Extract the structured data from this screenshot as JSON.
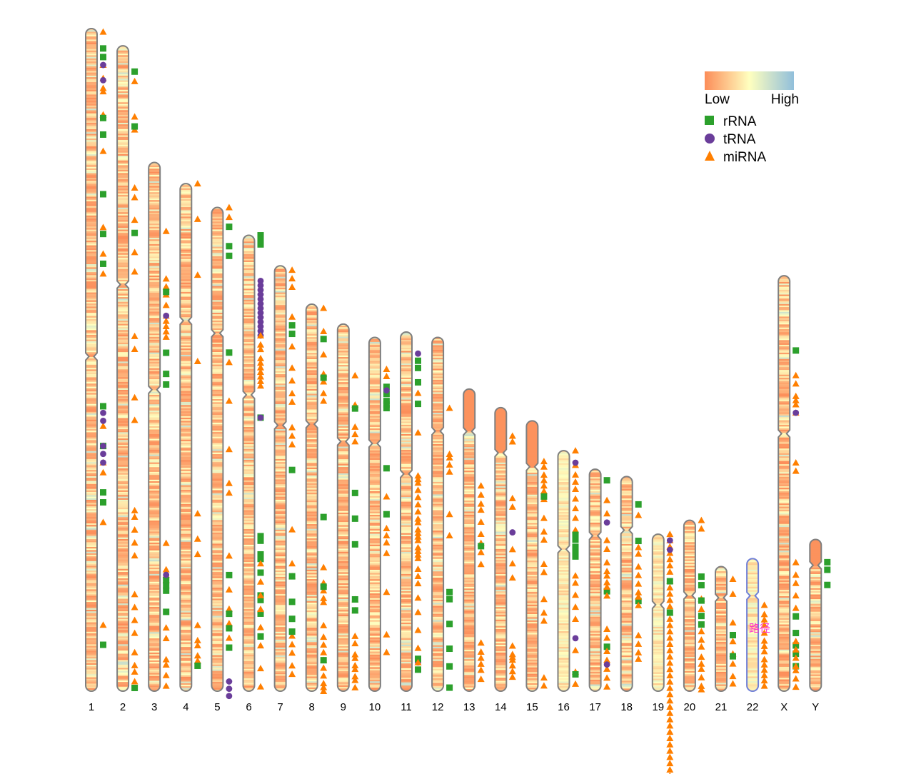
{
  "chart_data": {
    "type": "chromosome-ideogram",
    "title": "",
    "xlabel": "",
    "ylabel": "",
    "chromosomes": [
      {
        "name": "1",
        "length": 1.0,
        "centromere": 0.495
      },
      {
        "name": "2",
        "length": 0.974,
        "centromere": 0.37
      },
      {
        "name": "3",
        "length": 0.798,
        "centromere": 0.43
      },
      {
        "name": "4",
        "length": 0.766,
        "centromere": 0.27
      },
      {
        "name": "5",
        "length": 0.73,
        "centromere": 0.26
      },
      {
        "name": "6",
        "length": 0.688,
        "centromere": 0.35
      },
      {
        "name": "7",
        "length": 0.642,
        "centromere": 0.375
      },
      {
        "name": "8",
        "length": 0.584,
        "centromere": 0.31
      },
      {
        "name": "9",
        "length": 0.554,
        "centromere": 0.32
      },
      {
        "name": "10",
        "length": 0.534,
        "centromere": 0.3
      },
      {
        "name": "11",
        "length": 0.542,
        "centromere": 0.395
      },
      {
        "name": "12",
        "length": 0.534,
        "centromere": 0.265
      },
      {
        "name": "13",
        "length": 0.456,
        "centromere": 0.14
      },
      {
        "name": "14",
        "length": 0.428,
        "centromere": 0.16
      },
      {
        "name": "15",
        "length": 0.408,
        "centromere": 0.17
      },
      {
        "name": "16",
        "length": 0.363,
        "centromere": 0.41
      },
      {
        "name": "17",
        "length": 0.335,
        "centromere": 0.3
      },
      {
        "name": "18",
        "length": 0.324,
        "centromere": 0.25
      },
      {
        "name": "19",
        "length": 0.237,
        "centromere": 0.45
      },
      {
        "name": "20",
        "length": 0.258,
        "centromere": 0.44
      },
      {
        "name": "21",
        "length": 0.188,
        "centromere": 0.25
      },
      {
        "name": "22",
        "length": 0.2,
        "centromere": 0.28
      },
      {
        "name": "X",
        "length": 0.627,
        "centromere": 0.38
      },
      {
        "name": "Y",
        "length": 0.229,
        "centromere": 0.17
      }
    ],
    "density_scale": {
      "low_label": "Low",
      "high_label": "High",
      "colors": [
        "#fc8d59",
        "#ffffbf",
        "#91bfdb"
      ]
    },
    "series": [
      {
        "name": "rRNA",
        "shape": "square",
        "color": "#2ca02c"
      },
      {
        "name": "tRNA",
        "shape": "circle",
        "color": "#6a3d9a"
      },
      {
        "name": "miRNA",
        "shape": "triangle",
        "color": "#ff7f00"
      }
    ],
    "features": [
      {
        "chr": "1",
        "type": "miRNA",
        "pos": [
          0.005,
          0.055,
          0.075,
          0.09,
          0.095,
          0.13,
          0.185,
          0.3,
          0.34,
          0.37,
          0.6,
          0.63,
          0.655,
          0.67,
          0.745,
          0.9
        ]
      },
      {
        "chr": "1",
        "type": "rRNA",
        "pos": [
          0.03,
          0.043,
          0.135,
          0.16,
          0.25,
          0.31,
          0.355,
          0.57,
          0.63,
          0.7,
          0.715,
          0.93
        ]
      },
      {
        "chr": "1",
        "type": "tRNA",
        "pos": [
          0.055,
          0.078,
          0.58,
          0.592,
          0.63,
          0.642,
          0.655
        ]
      },
      {
        "chr": "2",
        "type": "miRNA",
        "pos": [
          0.055,
          0.11,
          0.13,
          0.22,
          0.235,
          0.27,
          0.32,
          0.35,
          0.45,
          0.47,
          0.545,
          0.58,
          0.72,
          0.73,
          0.75,
          0.77,
          0.79,
          0.85,
          0.87,
          0.89,
          0.91,
          0.94,
          0.96,
          0.97,
          0.985
        ]
      },
      {
        "chr": "2",
        "type": "rRNA",
        "pos": [
          0.04,
          0.125,
          0.29,
          0.995
        ]
      },
      {
        "chr": "3",
        "type": "miRNA",
        "pos": [
          0.13,
          0.22,
          0.235,
          0.25,
          0.27,
          0.29,
          0.3,
          0.31,
          0.32,
          0.33,
          0.4,
          0.72,
          0.77,
          0.78,
          0.79,
          0.88,
          0.9,
          0.94,
          0.95,
          0.97,
          0.99
        ]
      },
      {
        "chr": "3",
        "type": "rRNA",
        "pos": [
          0.245,
          0.36,
          0.4,
          0.42,
          0.79,
          0.8,
          0.81,
          0.85
        ]
      },
      {
        "chr": "3",
        "type": "tRNA",
        "pos": [
          0.29,
          0.78
        ]
      },
      {
        "chr": "4",
        "type": "miRNA",
        "pos": [
          0.0,
          0.07,
          0.18,
          0.35,
          0.65,
          0.7,
          0.73,
          0.87,
          0.9,
          0.91,
          0.93,
          0.94
        ]
      },
      {
        "chr": "4",
        "type": "rRNA",
        "pos": [
          0.95
        ]
      },
      {
        "chr": "5",
        "type": "miRNA",
        "pos": [
          0.0,
          0.02,
          0.32,
          0.4,
          0.5,
          0.57,
          0.59,
          0.72,
          0.79,
          0.83,
          0.86,
          0.89
        ]
      },
      {
        "chr": "5",
        "type": "rRNA",
        "pos": [
          0.04,
          0.08,
          0.1,
          0.3,
          0.76,
          0.84,
          0.87,
          0.91
        ]
      },
      {
        "chr": "5",
        "type": "tRNA",
        "pos": [
          0.98,
          0.995,
          1.01
        ]
      },
      {
        "chr": "6",
        "type": "rRNA",
        "pos": [
          0.0,
          0.01,
          0.02,
          0.4,
          0.66,
          0.67,
          0.7,
          0.71,
          0.74,
          0.79,
          0.8,
          0.83,
          0.88
        ]
      },
      {
        "chr": "6",
        "type": "tRNA",
        "pos": [
          0.1,
          0.11,
          0.12,
          0.13,
          0.14,
          0.15,
          0.16,
          0.17,
          0.18,
          0.19,
          0.2,
          0.21,
          0.22,
          0.4
        ]
      },
      {
        "chr": "6",
        "type": "miRNA",
        "pos": [
          0.22,
          0.24,
          0.25,
          0.27,
          0.28,
          0.29,
          0.3,
          0.31,
          0.32,
          0.33,
          0.72,
          0.76,
          0.79,
          0.82,
          0.86,
          0.9,
          0.95,
          0.99
        ]
      },
      {
        "chr": "7",
        "type": "miRNA",
        "pos": [
          0.01,
          0.03,
          0.05,
          0.12,
          0.19,
          0.24,
          0.27,
          0.3,
          0.32,
          0.38,
          0.4,
          0.42,
          0.62,
          0.7,
          0.73,
          0.87,
          0.89,
          0.91,
          0.94,
          0.96
        ]
      },
      {
        "chr": "7",
        "type": "rRNA",
        "pos": [
          0.14,
          0.16,
          0.48,
          0.73,
          0.79,
          0.83,
          0.86
        ]
      },
      {
        "chr": "8",
        "type": "miRNA",
        "pos": [
          0.01,
          0.07,
          0.13,
          0.18,
          0.2,
          0.23,
          0.25,
          0.68,
          0.72,
          0.74,
          0.76,
          0.77,
          0.83,
          0.86,
          0.88,
          0.9,
          0.92,
          0.94,
          0.96,
          0.98,
          0.99,
          1.0
        ]
      },
      {
        "chr": "8",
        "type": "rRNA",
        "pos": [
          0.09,
          0.19,
          0.55,
          0.73,
          0.92
        ]
      },
      {
        "chr": "9",
        "type": "miRNA",
        "pos": [
          0.14,
          0.22,
          0.28,
          0.3,
          0.32,
          0.75,
          0.78,
          0.85,
          0.87,
          0.9,
          0.91,
          0.93,
          0.94,
          0.96,
          0.97,
          0.99
        ]
      },
      {
        "chr": "9",
        "type": "rRNA",
        "pos": [
          0.23,
          0.46,
          0.53,
          0.6,
          0.75,
          0.78
        ]
      },
      {
        "chr": "10",
        "type": "miRNA",
        "pos": [
          0.09,
          0.11,
          0.45,
          0.54,
          0.56,
          0.58,
          0.61,
          0.72,
          0.84,
          0.89
        ]
      },
      {
        "chr": "10",
        "type": "rRNA",
        "pos": [
          0.14,
          0.16,
          0.18,
          0.19,
          0.2,
          0.37,
          0.5
        ]
      },
      {
        "chr": "10",
        "type": "tRNA",
        "pos": [
          0.15
        ]
      },
      {
        "chr": "11",
        "type": "tRNA",
        "pos": [
          0.06,
          0.92
        ]
      },
      {
        "chr": "11",
        "type": "rRNA",
        "pos": [
          0.08,
          0.1,
          0.14,
          0.2,
          0.91,
          0.94
        ]
      },
      {
        "chr": "11",
        "type": "miRNA",
        "pos": [
          0.17,
          0.28,
          0.4,
          0.41,
          0.42,
          0.44,
          0.46,
          0.48,
          0.5,
          0.52,
          0.53,
          0.55,
          0.56,
          0.57,
          0.58,
          0.6,
          0.61,
          0.62,
          0.63,
          0.66,
          0.68,
          0.7,
          0.74,
          0.78,
          0.83,
          0.88,
          0.92
        ]
      },
      {
        "chr": "12",
        "type": "miRNA",
        "pos": [
          0.2,
          0.33,
          0.34,
          0.36,
          0.38,
          0.5,
          0.56
        ]
      },
      {
        "chr": "12",
        "type": "rRNA",
        "pos": [
          0.72,
          0.74,
          0.81,
          0.88,
          0.93,
          0.99
        ]
      },
      {
        "chr": "13",
        "type": "miRNA",
        "pos": [
          0.32,
          0.35,
          0.38,
          0.4,
          0.44,
          0.48,
          0.51,
          0.54,
          0.58,
          0.84,
          0.87,
          0.89,
          0.91,
          0.93,
          0.96
        ]
      },
      {
        "chr": "13",
        "type": "rRNA",
        "pos": [
          0.52
        ]
      },
      {
        "chr": "14",
        "type": "miRNA",
        "pos": [
          0.1,
          0.12,
          0.32,
          0.35,
          0.5,
          0.55,
          0.6,
          0.84,
          0.87,
          0.88,
          0.89,
          0.91,
          0.93,
          0.95
        ]
      },
      {
        "chr": "14",
        "type": "tRNA",
        "pos": [
          0.44
        ]
      },
      {
        "chr": "15",
        "type": "miRNA",
        "pos": [
          0.15,
          0.17,
          0.2,
          0.22,
          0.24,
          0.26,
          0.29,
          0.36,
          0.41,
          0.44,
          0.53,
          0.56,
          0.66,
          0.71,
          0.74,
          0.95,
          0.98
        ]
      },
      {
        "chr": "15",
        "type": "rRNA",
        "pos": [
          0.28
        ]
      },
      {
        "chr": "16",
        "type": "miRNA",
        "pos": [
          0.0,
          0.06,
          0.1,
          0.13,
          0.16,
          0.2,
          0.24,
          0.28,
          0.33,
          0.52,
          0.55,
          0.6,
          0.65,
          0.7,
          0.83,
          0.92,
          0.97
        ]
      },
      {
        "chr": "16",
        "type": "tRNA",
        "pos": [
          0.05,
          0.78
        ]
      },
      {
        "chr": "16",
        "type": "rRNA",
        "pos": [
          0.35,
          0.37,
          0.4,
          0.42,
          0.44,
          0.93
        ]
      },
      {
        "chr": "17",
        "type": "rRNA",
        "pos": [
          0.05,
          0.55,
          0.8
        ]
      },
      {
        "chr": "17",
        "type": "miRNA",
        "pos": [
          0.14,
          0.2,
          0.32,
          0.36,
          0.42,
          0.46,
          0.48,
          0.51,
          0.53,
          0.57,
          0.72,
          0.76,
          0.82,
          0.86,
          0.9,
          0.94,
          0.98
        ]
      },
      {
        "chr": "17",
        "type": "tRNA",
        "pos": [
          0.24,
          0.88
        ]
      },
      {
        "chr": "18",
        "type": "rRNA",
        "pos": [
          0.13,
          0.3,
          0.58
        ]
      },
      {
        "chr": "18",
        "type": "miRNA",
        "pos": [
          0.18,
          0.33,
          0.36,
          0.42,
          0.46,
          0.5,
          0.54,
          0.56,
          0.6,
          0.74,
          0.78,
          0.82,
          0.85
        ]
      },
      {
        "chr": "19",
        "type": "miRNA",
        "pos": [
          0.0,
          0.04,
          0.08,
          0.12,
          0.16,
          0.2,
          0.24,
          0.3,
          0.34,
          0.38,
          0.42,
          0.46,
          0.5,
          0.54,
          0.58,
          0.62,
          0.66,
          0.7,
          0.74,
          0.78,
          0.82,
          0.86,
          0.9,
          0.94,
          0.98,
          1.02,
          1.06,
          1.1,
          1.14,
          1.18,
          1.22,
          1.26,
          1.3,
          1.34,
          1.38,
          1.42,
          1.46,
          1.5,
          1.54,
          1.58,
          1.62
        ]
      },
      {
        "chr": "19",
        "type": "tRNA",
        "pos": [
          0.04,
          0.1
        ]
      },
      {
        "chr": "19",
        "type": "rRNA",
        "pos": [
          0.3,
          0.5
        ]
      },
      {
        "chr": "20",
        "type": "miRNA",
        "pos": [
          0.0,
          0.05,
          0.46,
          0.52,
          0.65,
          0.7,
          0.74,
          0.8,
          0.84,
          0.87,
          0.92,
          0.97,
          0.99
        ]
      },
      {
        "chr": "20",
        "type": "rRNA",
        "pos": [
          0.33,
          0.38,
          0.47,
          0.56,
          0.61
        ]
      },
      {
        "chr": "21",
        "type": "miRNA",
        "pos": [
          0.1,
          0.22,
          0.45,
          0.6,
          0.7,
          0.78,
          0.88,
          0.94
        ]
      },
      {
        "chr": "21",
        "type": "rRNA",
        "pos": [
          0.55,
          0.72
        ]
      },
      {
        "chr": "22",
        "type": "miRNA",
        "pos": [
          0.35,
          0.42,
          0.46,
          0.5,
          0.56,
          0.62,
          0.66,
          0.7,
          0.76,
          0.8,
          0.84,
          0.88,
          0.92,
          0.96
        ]
      },
      {
        "chr": "X",
        "type": "rRNA",
        "pos": [
          0.18,
          0.82,
          0.86,
          0.89,
          0.91,
          0.94
        ]
      },
      {
        "chr": "X",
        "type": "miRNA",
        "pos": [
          0.24,
          0.26,
          0.29,
          0.3,
          0.31,
          0.33,
          0.45,
          0.47,
          0.69,
          0.72,
          0.74,
          0.77,
          0.8,
          0.88,
          0.9,
          0.92,
          0.94,
          0.95,
          0.97,
          0.99
        ]
      },
      {
        "chr": "X",
        "type": "tRNA",
        "pos": [
          0.33
        ]
      },
      {
        "chr": "Y",
        "type": "rRNA",
        "pos": [
          0.15,
          0.2,
          0.3
        ]
      }
    ]
  },
  "legend": {
    "low_label": "Low",
    "high_label": "High",
    "items": [
      {
        "label": "rRNA",
        "shape": "square",
        "color": "#2ca02c"
      },
      {
        "label": "tRNA",
        "shape": "circle",
        "color": "#6a3d9a"
      },
      {
        "label": "miRNA",
        "shape": "triangle",
        "color": "#ff7f00"
      }
    ]
  },
  "annotation": {
    "text": "路径",
    "chr": "22",
    "color": "#ff33cc"
  }
}
